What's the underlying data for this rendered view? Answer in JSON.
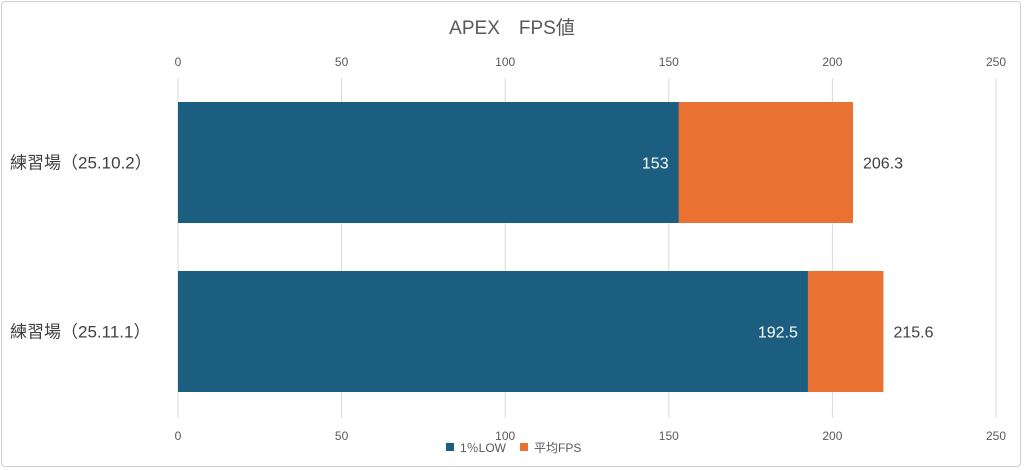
{
  "chart_data": {
    "type": "bar",
    "orientation": "horizontal",
    "title": "APEX　FPS値",
    "categories": [
      "練習場（25.10.2）",
      "練習場（25.11.1）"
    ],
    "series": [
      {
        "name": "1％LOW",
        "values": [
          153,
          192.5
        ],
        "color": "#1B5E80"
      },
      {
        "name": "平均FPS",
        "values": [
          206.3,
          215.6
        ],
        "color": "#E97132"
      }
    ],
    "xlim": [
      0,
      250
    ],
    "xticks": [
      0,
      50,
      100,
      150,
      200,
      250
    ],
    "xtick_labels": [
      "0",
      "50",
      "100",
      "150",
      "200",
      "250"
    ],
    "grid": true,
    "legend": "bottom",
    "xlabel": "",
    "ylabel": ""
  }
}
